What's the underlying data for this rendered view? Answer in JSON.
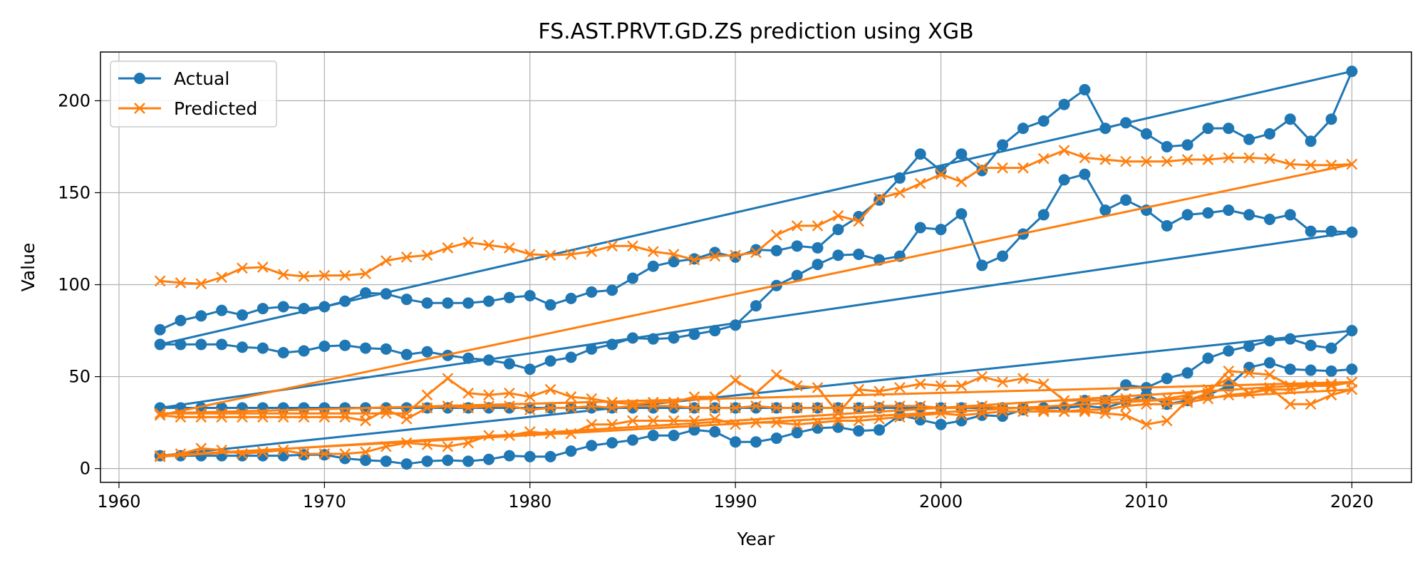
{
  "chart_data": {
    "type": "line",
    "title": "FS.AST.PRVT.GD.ZS prediction using XGB",
    "xlabel": "Year",
    "ylabel": "Value",
    "xlim": [
      1959.1,
      2022.9
    ],
    "ylim": [
      -7.5,
      226.5
    ],
    "xticks": [
      1960,
      1970,
      1980,
      1990,
      2000,
      2010,
      2020
    ],
    "yticks": [
      0,
      50,
      100,
      150,
      200
    ],
    "grid": true,
    "legend_position": "top-left",
    "colors": {
      "actual": "#1f77b4",
      "predicted": "#ff7f0e"
    },
    "series": [
      {
        "name": "Actual",
        "marker": "circle",
        "years": [
          1962,
          1963,
          1964,
          1965,
          1966,
          1967,
          1968,
          1969,
          1970,
          1971,
          1972,
          1973,
          1974,
          1975,
          1976,
          1977,
          1978,
          1979,
          1980,
          1981,
          1982,
          1983,
          1984,
          1985,
          1986,
          1987,
          1988,
          1989,
          1990,
          1991,
          1992,
          1993,
          1994,
          1995,
          1996,
          1997,
          1998,
          1999,
          2000,
          2001,
          2002,
          2003,
          2004,
          2005,
          2006,
          2007,
          2008,
          2009,
          2010,
          2011,
          2012,
          2013,
          2014,
          2015,
          2016,
          2017,
          2018,
          2019,
          2020
        ],
        "segments": [
          [
            75.5,
            80.5,
            83,
            86,
            83.5,
            87,
            88,
            87,
            88,
            91,
            95.5,
            95,
            92,
            90,
            90,
            90,
            91,
            93,
            94,
            89,
            92.5,
            96,
            97,
            103.5,
            110,
            112.5,
            114,
            117.5,
            115,
            119,
            118.5,
            121,
            120,
            130,
            137,
            146,
            158,
            171,
            162,
            171,
            162,
            176,
            185,
            189,
            198,
            206,
            185,
            188,
            182,
            175,
            176,
            185,
            185,
            179,
            182,
            190,
            178,
            190,
            216
          ],
          [
            67.5,
            67.5,
            67.5,
            67.5,
            66,
            65.5,
            63,
            64,
            66.5,
            67,
            65.5,
            65,
            62,
            63.5,
            61.5,
            60,
            59,
            57,
            54,
            58.5,
            60.5,
            65,
            67.5,
            71,
            70.5,
            71,
            73,
            75,
            78,
            88.5,
            99.5,
            105,
            111,
            116,
            116.5,
            113.5,
            115.5,
            131,
            130,
            138.5,
            110.5,
            115.5,
            127.5,
            138,
            157,
            160,
            140.5,
            146,
            140.5,
            132,
            138,
            139,
            140.5,
            138,
            135.5,
            138,
            129,
            129,
            128.5
          ],
          [
            33,
            33,
            33,
            33,
            33,
            33,
            33,
            33,
            33,
            33,
            33,
            33,
            33,
            33,
            33,
            33,
            33,
            33,
            33,
            33,
            33,
            33,
            33,
            33,
            33,
            33,
            33,
            33,
            33,
            33,
            33,
            33,
            33,
            33,
            33,
            33,
            33,
            33,
            33,
            33,
            33,
            33,
            33,
            33,
            33,
            37,
            37,
            45.5,
            44,
            49,
            52,
            60,
            64,
            66.5,
            69.5,
            70.5,
            67,
            65.5,
            75
          ],
          [
            7,
            7,
            7,
            7,
            7,
            7,
            7,
            7.5,
            7.5,
            5.5,
            4.5,
            4,
            2.5,
            4,
            4.5,
            4,
            5,
            7,
            6.5,
            6.5,
            9.5,
            12.5,
            14,
            15.5,
            18,
            18,
            21,
            20,
            14.5,
            14.5,
            16.5,
            19.5,
            22,
            22.5,
            20.5,
            21,
            29,
            26.5,
            24,
            26,
            29,
            28.5,
            32,
            33,
            33,
            34,
            33,
            36.5,
            40,
            35,
            37,
            40,
            45,
            55,
            57.5,
            54,
            53.5,
            53,
            54
          ]
        ]
      },
      {
        "name": "Predicted",
        "marker": "x",
        "years": [
          1962,
          1963,
          1964,
          1965,
          1966,
          1967,
          1968,
          1969,
          1970,
          1971,
          1972,
          1973,
          1974,
          1975,
          1976,
          1977,
          1978,
          1979,
          1980,
          1981,
          1982,
          1983,
          1984,
          1985,
          1986,
          1987,
          1988,
          1989,
          1990,
          1991,
          1992,
          1993,
          1994,
          1995,
          1996,
          1997,
          1998,
          1999,
          2000,
          2001,
          2002,
          2003,
          2004,
          2005,
          2006,
          2007,
          2008,
          2009,
          2010,
          2011,
          2012,
          2013,
          2014,
          2015,
          2016,
          2017,
          2018,
          2019,
          2020
        ],
        "segments": [
          [
            102,
            101,
            100.5,
            104,
            109,
            109.5,
            105.5,
            104.5,
            105,
            105,
            106,
            113,
            115,
            116,
            120,
            123,
            121.5,
            120,
            116.5,
            116,
            116.5,
            118,
            121,
            121,
            118,
            116.5,
            113.5,
            115.5,
            116,
            117.5,
            127,
            132,
            132,
            137.5,
            134.5,
            147,
            150,
            155,
            160,
            156,
            163.5,
            163.5,
            163.5,
            168.5,
            173,
            169,
            168,
            167,
            167,
            167,
            168,
            168,
            169,
            169,
            168.5,
            165.5,
            165,
            165,
            165.5
          ],
          [
            29,
            28,
            28,
            28,
            28,
            28,
            28,
            28,
            28,
            28,
            26,
            32,
            27,
            33,
            34,
            33,
            34,
            34,
            32,
            33,
            33,
            34,
            33,
            34,
            34,
            34,
            33,
            33,
            33,
            34,
            33,
            33,
            33,
            33,
            33,
            34,
            34,
            34,
            33,
            33,
            34,
            33,
            33,
            32,
            31,
            31,
            30,
            29,
            24,
            26,
            37,
            41,
            53,
            52,
            51,
            45,
            45,
            45,
            47
          ],
          [
            30,
            30,
            30,
            30,
            30,
            30,
            30,
            30,
            30,
            30,
            30,
            30,
            30,
            40,
            49,
            41,
            40,
            41,
            39,
            43,
            39,
            38,
            36,
            35,
            36,
            36,
            39,
            39,
            48,
            41,
            51,
            45,
            44,
            30,
            43,
            42,
            44,
            46,
            45,
            45,
            50,
            47,
            49,
            46,
            37,
            37,
            37,
            38,
            37,
            38,
            40,
            43,
            49,
            41,
            44,
            35,
            35,
            40,
            43
          ],
          [
            7,
            8,
            11,
            10,
            8,
            9,
            10,
            8,
            8,
            8,
            9,
            12,
            14,
            13,
            12,
            14,
            18,
            18,
            20,
            19,
            19,
            24,
            24,
            26,
            26,
            26,
            26,
            27,
            24,
            25,
            25,
            24,
            25,
            26,
            26,
            27,
            28,
            29,
            30,
            29,
            30,
            31,
            31,
            31,
            31,
            32,
            32,
            34,
            35,
            35,
            36,
            38,
            40,
            41,
            43,
            43,
            45,
            46,
            47
          ],
          [
            6.5,
            null,
            null,
            null,
            null,
            null,
            null,
            null,
            null,
            null,
            null,
            null,
            null,
            null,
            null,
            null,
            null,
            null,
            null,
            null,
            null,
            null,
            null,
            null,
            null,
            null,
            null,
            null,
            null,
            null,
            null,
            null,
            null,
            null,
            null,
            null,
            null,
            null,
            null,
            null,
            null,
            null,
            null,
            null,
            null,
            null,
            null,
            null,
            null,
            null,
            null,
            null,
            null,
            null,
            null,
            null,
            null,
            null,
            null
          ]
        ]
      }
    ]
  }
}
